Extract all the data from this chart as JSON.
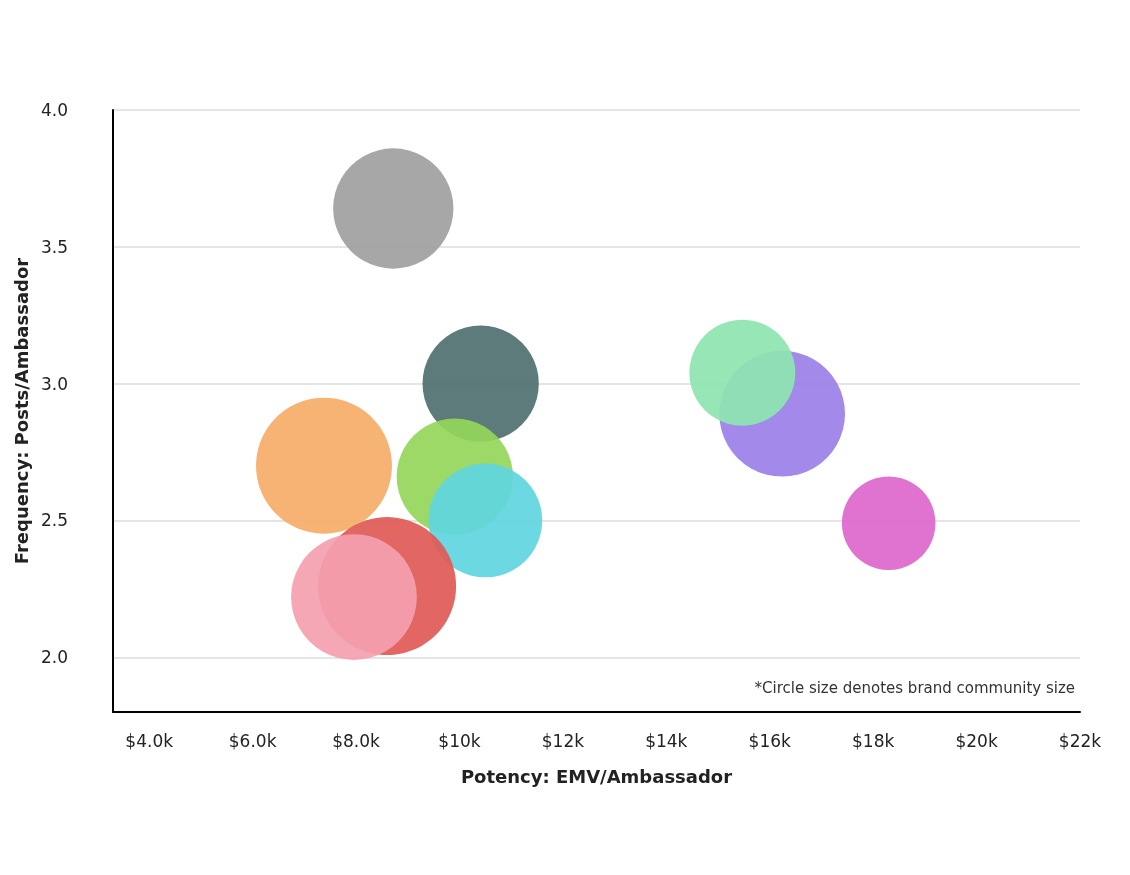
{
  "chart_data": {
    "type": "bubble",
    "xlabel": "Potency: EMV/Ambassador",
    "ylabel": "Frequency: Posts/Ambassador",
    "x": [
      8.72,
      10.41,
      7.38,
      9.91,
      10.5,
      8.6,
      7.96,
      16.24,
      15.47,
      18.3
    ],
    "values": [
      3.64,
      3.0,
      2.7,
      2.66,
      2.5,
      2.26,
      2.22,
      2.89,
      3.04,
      2.49
    ],
    "sizes": [
      0.76,
      0.71,
      0.97,
      0.71,
      0.68,
      1,
      0.83,
      0.83,
      0.59,
      0.46
    ],
    "colors": [
      "#a0a0a0",
      "#4f7070",
      "#f5ad68",
      "#94d65a",
      "#5fd6e0",
      "#e05a55",
      "#f5a0b0",
      "#9b7fe8",
      "#8ee5b0",
      "#dd66cc"
    ],
    "xlim": [
      3.3,
      22
    ],
    "ylim": [
      1.8,
      4.0
    ],
    "xticks": [
      {
        "value": 4,
        "label": "$4.0k"
      },
      {
        "value": 6,
        "label": "$6.0k"
      },
      {
        "value": 8,
        "label": "$8.0k"
      },
      {
        "value": 10,
        "label": "$10k"
      },
      {
        "value": 12,
        "label": "$12k"
      },
      {
        "value": 14,
        "label": "$14k"
      },
      {
        "value": 16,
        "label": "$16k"
      },
      {
        "value": 18,
        "label": "$18k"
      },
      {
        "value": 20,
        "label": "$20k"
      },
      {
        "value": 22,
        "label": "$22k"
      }
    ],
    "yticks": [
      {
        "value": 2,
        "label": "2.0"
      },
      {
        "value": 2.5,
        "label": "2.5"
      },
      {
        "value": 3,
        "label": "3.0"
      },
      {
        "value": 3.5,
        "label": "3.5"
      },
      {
        "value": 4,
        "label": "4.0"
      }
    ],
    "grid": "y",
    "annotations": [
      "*Circle size denotes brand community size"
    ]
  }
}
